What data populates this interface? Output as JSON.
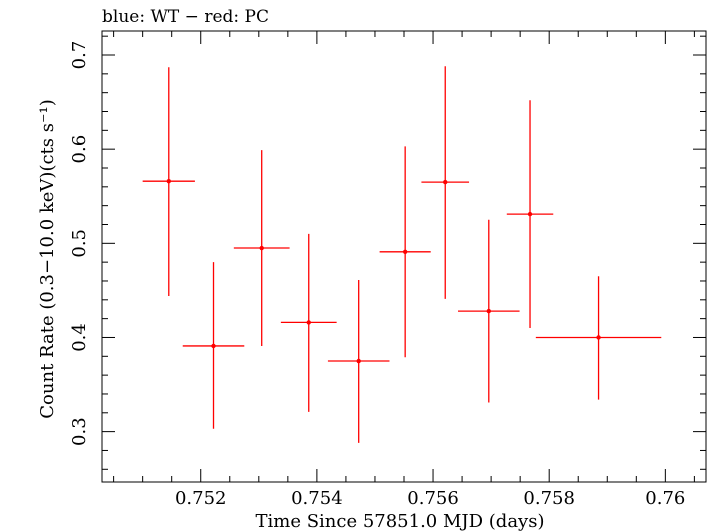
{
  "chart_data": {
    "type": "scatter",
    "title": "blue: WT − red: PC",
    "xlabel": "Time Since 57851.0 MJD (days)",
    "ylabel": "Count Rate (0.3−10.0 keV)(cts s⁻¹)",
    "xlim": [
      0.7503,
      0.7607
    ],
    "ylim": [
      0.2465,
      0.7255
    ],
    "xticks_major": [
      0.752,
      0.754,
      0.756,
      0.758,
      0.76
    ],
    "xtick_labels": [
      "0.752",
      "0.754",
      "0.756",
      "0.758",
      "0.76"
    ],
    "yticks_major": [
      0.3,
      0.4,
      0.5,
      0.6,
      0.7
    ],
    "ytick_labels": [
      "0.3",
      "0.4",
      "0.5",
      "0.6",
      "0.7"
    ],
    "grid": false,
    "series": [
      {
        "name": "PC",
        "color": "#ff0000",
        "points": [
          {
            "x": 0.75145,
            "y": 0.566,
            "xerr": 0.00045,
            "yerr_low": 0.122,
            "yerr_high": 0.121
          },
          {
            "x": 0.75222,
            "y": 0.391,
            "xerr": 0.00053,
            "yerr_low": 0.088,
            "yerr_high": 0.089
          },
          {
            "x": 0.75305,
            "y": 0.495,
            "xerr": 0.00048,
            "yerr_low": 0.104,
            "yerr_high": 0.104
          },
          {
            "x": 0.75386,
            "y": 0.416,
            "xerr": 0.00048,
            "yerr_low": 0.095,
            "yerr_high": 0.094
          },
          {
            "x": 0.75472,
            "y": 0.375,
            "xerr": 0.00053,
            "yerr_low": 0.087,
            "yerr_high": 0.086
          },
          {
            "x": 0.75552,
            "y": 0.491,
            "xerr": 0.00044,
            "yerr_low": 0.112,
            "yerr_high": 0.112
          },
          {
            "x": 0.75621,
            "y": 0.565,
            "xerr": 0.00041,
            "yerr_low": 0.124,
            "yerr_high": 0.123
          },
          {
            "x": 0.75696,
            "y": 0.428,
            "xerr": 0.00053,
            "yerr_low": 0.097,
            "yerr_high": 0.097
          },
          {
            "x": 0.75767,
            "y": 0.531,
            "xerr": 0.0004,
            "yerr_low": 0.121,
            "yerr_high": 0.121
          },
          {
            "x": 0.75885,
            "y": 0.4,
            "xerr": 0.00108,
            "yerr_low": 0.066,
            "yerr_high": 0.065
          }
        ]
      }
    ]
  }
}
